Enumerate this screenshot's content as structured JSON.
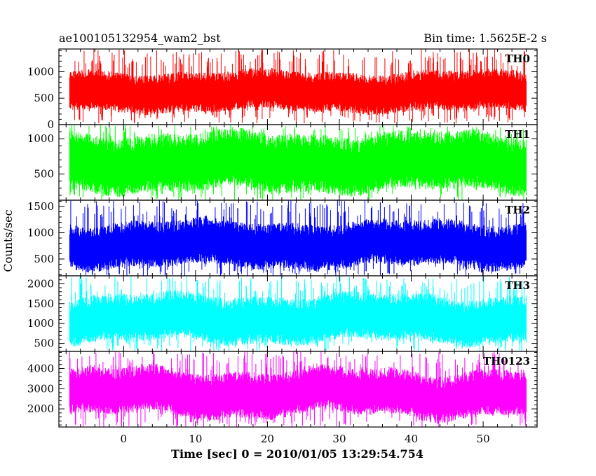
{
  "header": {
    "title": "ae100105132954_wam2_bst",
    "bin_time": "Bin time: 1.5625E-2 s"
  },
  "chart_data": {
    "type": "line",
    "xlabel": "Time [sec] 0 = 2010/01/05 13:29:54.754",
    "ylabel": "Counts/sec",
    "xlim": [
      -9,
      57.5
    ],
    "x_data_range": [
      -7.5,
      56
    ],
    "xticks": [
      0,
      10,
      20,
      30,
      40,
      50
    ],
    "grid": false,
    "panels": [
      {
        "name": "TH0",
        "color": "#ff0000",
        "ylim": [
          0,
          1430
        ],
        "yticks": [
          0,
          500,
          1000
        ],
        "level_range": [
          70,
          1380
        ],
        "baseline": 610,
        "noise_width": 330,
        "spike_max": 1430,
        "spike_min": 20
      },
      {
        "name": "TH1",
        "color": "#00ff00",
        "ylim": [
          130,
          1200
        ],
        "yticks": [
          500,
          1000
        ],
        "level_range": [
          150,
          1180
        ],
        "baseline": 650,
        "noise_width": 360,
        "spike_max": 1200,
        "spike_min": 130
      },
      {
        "name": "TH2",
        "color": "#0000ff",
        "ylim": [
          180,
          1620
        ],
        "yticks": [
          500,
          1000,
          1500
        ],
        "level_range": [
          200,
          1560
        ],
        "baseline": 760,
        "noise_width": 380,
        "spike_max": 1620,
        "spike_min": 180
      },
      {
        "name": "TH3",
        "color": "#00ffff",
        "ylim": [
          300,
          2200
        ],
        "yticks": [
          500,
          1000,
          1500,
          2000
        ],
        "level_range": [
          350,
          2150
        ],
        "baseline": 1100,
        "noise_width": 520,
        "spike_max": 2200,
        "spike_min": 300
      },
      {
        "name": "TH0123",
        "color": "#ff00ff",
        "ylim": [
          1100,
          4850
        ],
        "yticks": [
          2000,
          3000,
          4000
        ],
        "level_range": [
          1150,
          4750
        ],
        "baseline": 2750,
        "noise_width": 1000,
        "spike_max": 4850,
        "spike_min": 1100
      }
    ]
  }
}
